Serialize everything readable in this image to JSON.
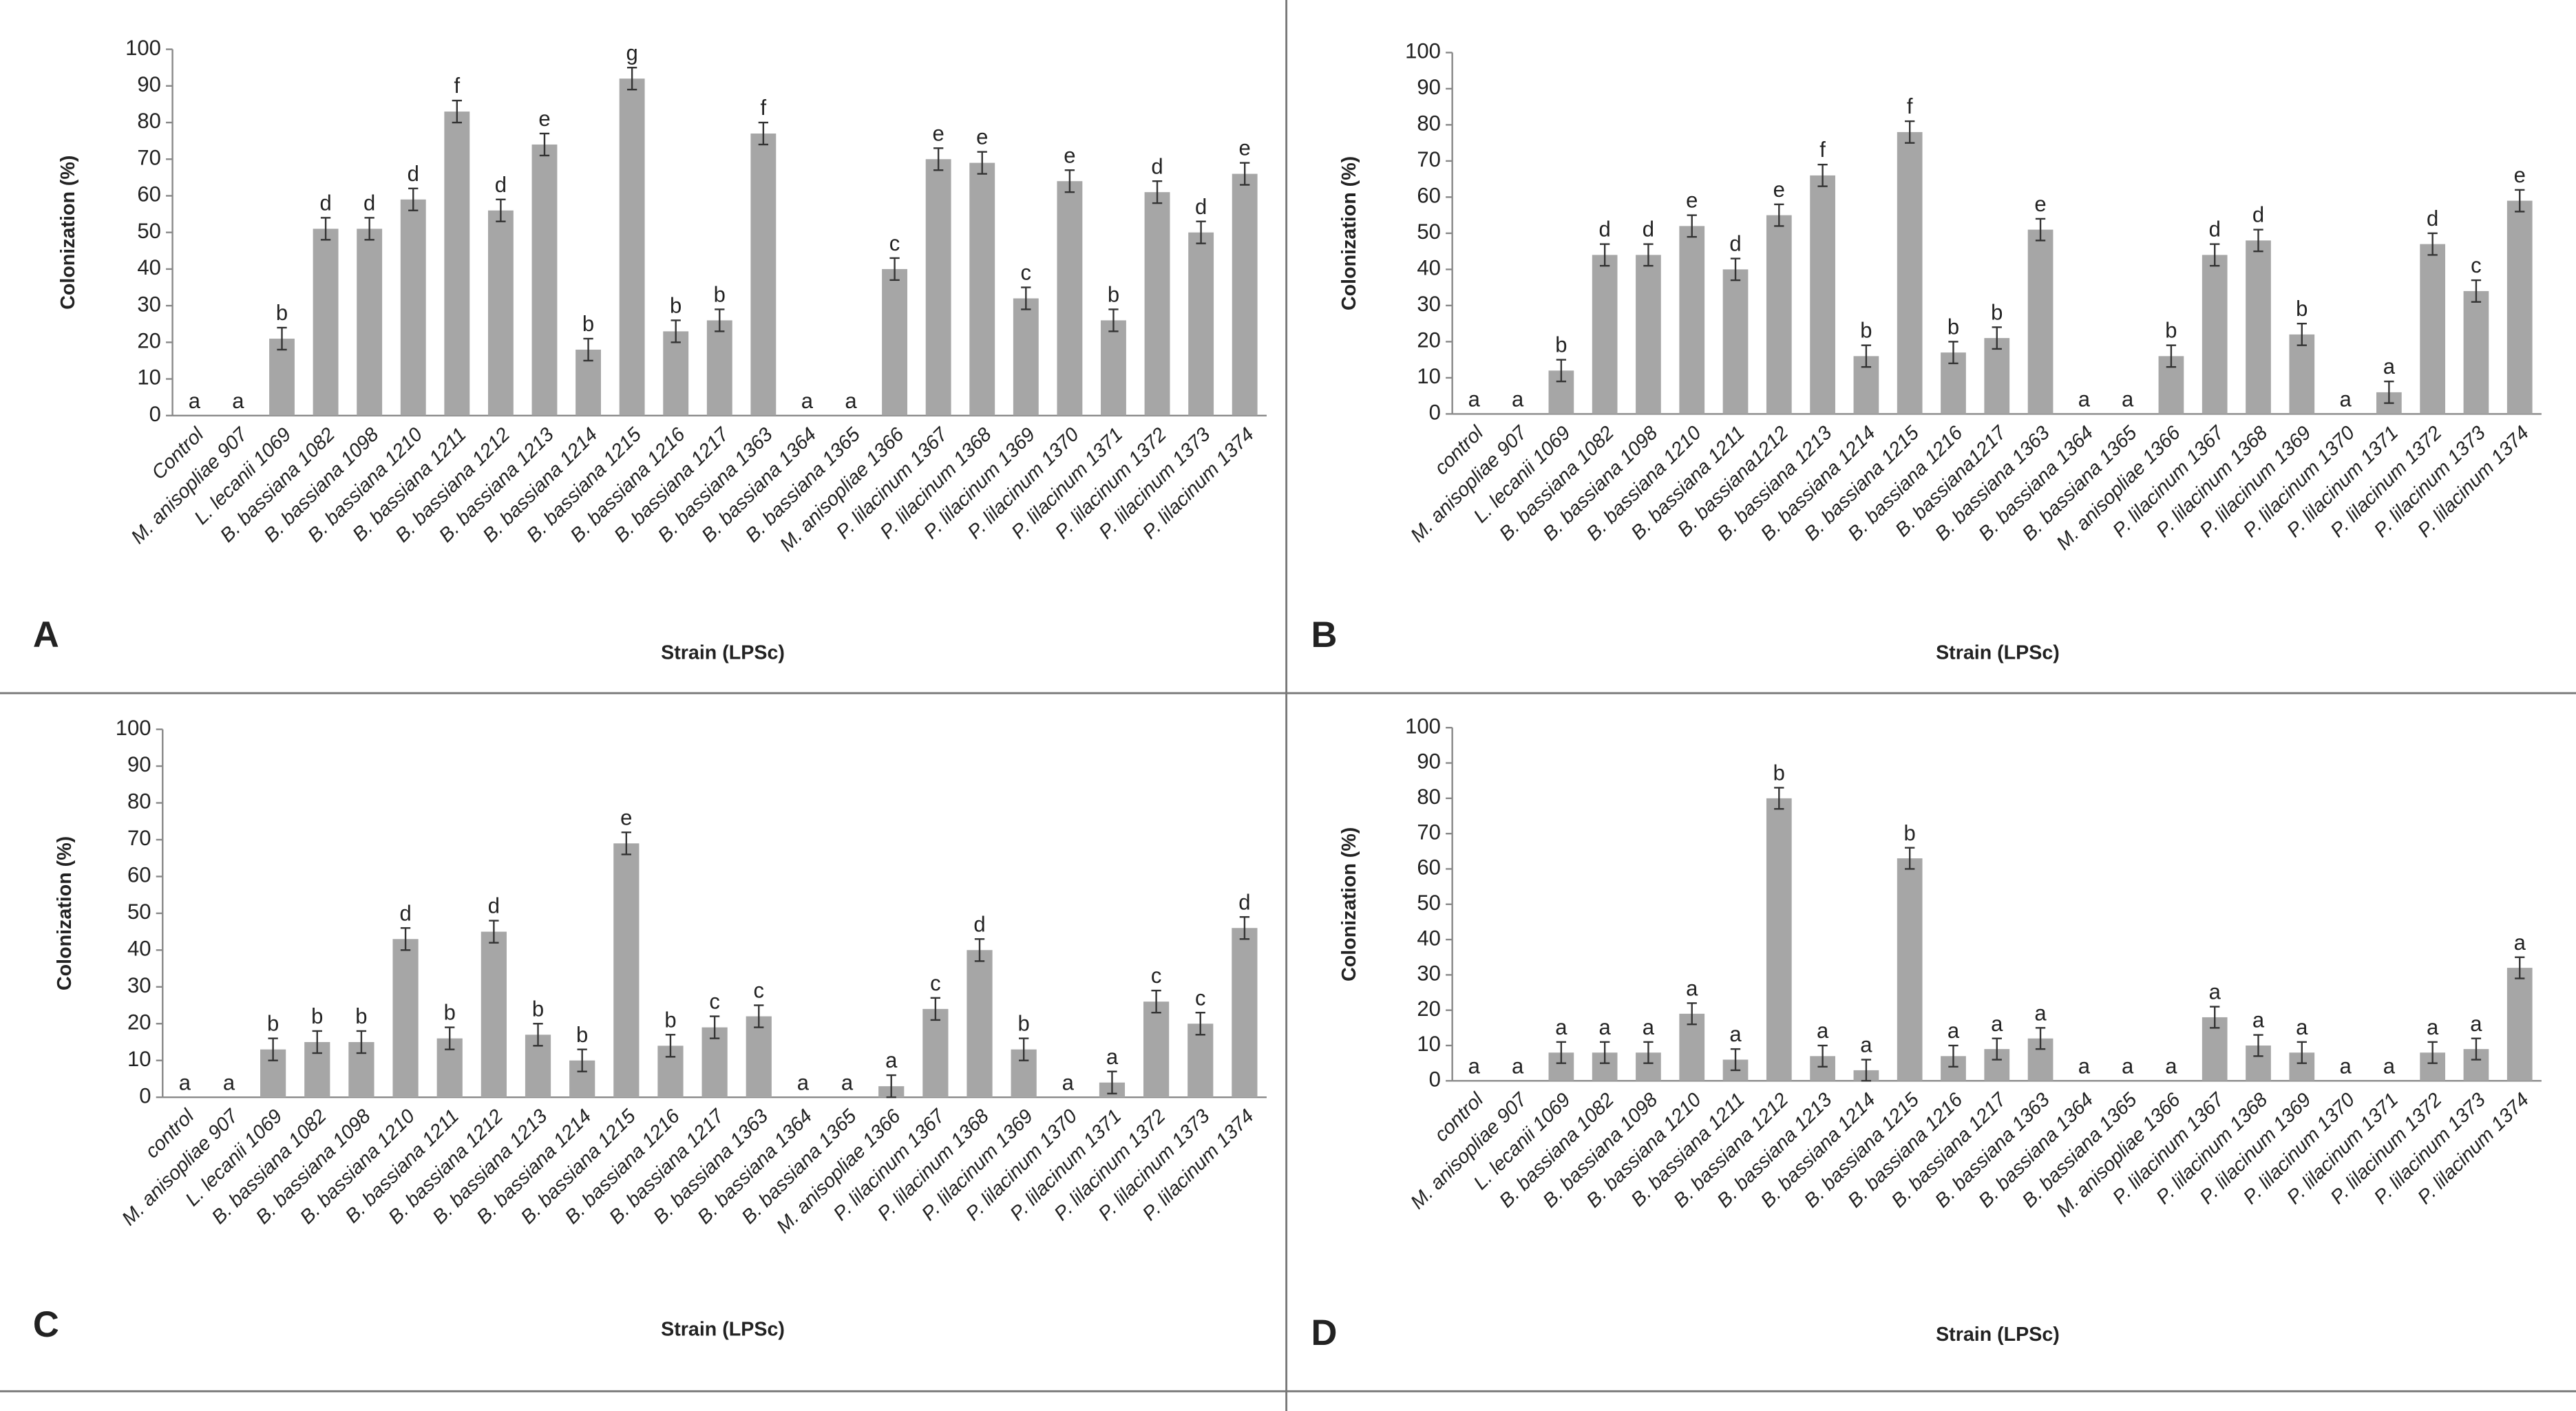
{
  "chart_data": [
    {
      "type": "bar",
      "panel_label": "A",
      "ylabel": "Colonization (%)",
      "xlabel": "Strain (LPSc)",
      "color": "#a6a6a6",
      "ylim": [
        0,
        100
      ],
      "yticks": [
        0,
        10,
        20,
        30,
        40,
        50,
        60,
        70,
        80,
        90,
        100
      ],
      "categories": [
        "Control",
        "M. anisopliae 907",
        "L. lecanii 1069",
        "B. bassiana 1082",
        "B. bassiana 1098",
        "B. bassiana 1210",
        "B. bassiana 1211",
        "B. bassiana 1212",
        "B. bassiana 1213",
        "B. bassiana 1214",
        "B. bassiana 1215",
        "B. bassiana 1216",
        "B. bassiana 1217",
        "B. bassiana 1363",
        "B. bassiana 1364",
        "B. bassiana 1365",
        "M. anisopliae 1366",
        "P. lilacinum 1367",
        "P. lilacinum 1368",
        "P. lilacinum 1369",
        "P. lilacinum 1370",
        "P. lilacinum 1371",
        "P. lilacinum 1372",
        "P. lilacinum 1373",
        "P. lilacinum 1374"
      ],
      "values": [
        0,
        0,
        21,
        51,
        51,
        59,
        83,
        56,
        74,
        18,
        92,
        23,
        26,
        77,
        0,
        0,
        40,
        70,
        69,
        32,
        64,
        26,
        61,
        50,
        66
      ],
      "errors": [
        0,
        0,
        3,
        3,
        3,
        3,
        3,
        3,
        3,
        3,
        3,
        3,
        3,
        3,
        0,
        0,
        3,
        3,
        3,
        3,
        3,
        3,
        3,
        3,
        3
      ],
      "letters": [
        "a",
        "a",
        "b",
        "d",
        "d",
        "d",
        "f",
        "d",
        "e",
        "b",
        "g",
        "b",
        "b",
        "f",
        "a",
        "a",
        "c",
        "e",
        "e",
        "c",
        "e",
        "b",
        "d",
        "d",
        "e"
      ]
    },
    {
      "type": "bar",
      "panel_label": "B",
      "ylabel": "Colonization (%)",
      "xlabel": "Strain (LPSc)",
      "color": "#a6a6a6",
      "ylim": [
        0,
        100
      ],
      "yticks": [
        0,
        10,
        20,
        30,
        40,
        50,
        60,
        70,
        80,
        90,
        100
      ],
      "categories": [
        "control",
        "M. anisopliae 907",
        "L. lecanii 1069",
        "B. bassiana 1082",
        "B. bassiana 1098",
        "B. bassiana 1210",
        "B. bassiana 1211",
        "B. bassiana1212",
        "B. bassiana 1213",
        "B. bassiana 1214",
        "B. bassiana 1215",
        "B. bassiana 1216",
        "B. bassiana1217",
        "B. bassiana 1363",
        "B. bassiana 1364",
        "B. bassiana 1365",
        "M. anisopliae 1366",
        "P. lilacinum 1367",
        "P. lilacinum 1368",
        "P. lilacinum 1369",
        "P. lilacinum 1370",
        "P. lilacinum 1371",
        "P. lilacinum 1372",
        "P. lilacinum 1373",
        "P. lilacinum 1374"
      ],
      "values": [
        0,
        0,
        12,
        44,
        44,
        52,
        40,
        55,
        66,
        16,
        78,
        17,
        21,
        51,
        0,
        0,
        16,
        44,
        48,
        22,
        0,
        6,
        47,
        34,
        59
      ],
      "errors": [
        0,
        0,
        3,
        3,
        3,
        3,
        3,
        3,
        3,
        3,
        3,
        3,
        3,
        3,
        0,
        0,
        3,
        3,
        3,
        3,
        0,
        3,
        3,
        3,
        3
      ],
      "letters": [
        "a",
        "a",
        "b",
        "d",
        "d",
        "e",
        "d",
        "e",
        "f",
        "b",
        "f",
        "b",
        "b",
        "e",
        "a",
        "a",
        "b",
        "d",
        "d",
        "b",
        "a",
        "a",
        "d",
        "c",
        "e"
      ]
    },
    {
      "type": "bar",
      "panel_label": "C",
      "ylabel": "Colonization (%)",
      "xlabel": "Strain (LPSc)",
      "color": "#a6a6a6",
      "ylim": [
        0,
        100
      ],
      "yticks": [
        0,
        10,
        20,
        30,
        40,
        50,
        60,
        70,
        80,
        90,
        100
      ],
      "categories": [
        "control",
        "M. anisopliae 907",
        "L. lecanii 1069",
        "B. bassiana 1082",
        "B. bassiana 1098",
        "B. bassiana 1210",
        "B. bassiana 1211",
        "B. bassiana 1212",
        "B. bassiana 1213",
        "B. bassiana 1214",
        "B. bassiana 1215",
        "B. bassiana 1216",
        "B. bassiana 1217",
        "B. bassiana 1363",
        "B. bassiana 1364",
        "B. bassiana 1365",
        "M. anisopliae 1366",
        "P. lilacinum 1367",
        "P. lilacinum 1368",
        "P. lilacinum 1369",
        "P. lilacinum 1370",
        "P. lilacinum 1371",
        "P. lilacinum 1372",
        "P. lilacinum 1373",
        "P. lilacinum 1374"
      ],
      "values": [
        0,
        0,
        13,
        15,
        15,
        43,
        16,
        45,
        17,
        10,
        69,
        14,
        19,
        22,
        0,
        0,
        3,
        24,
        40,
        13,
        0,
        4,
        26,
        20,
        46
      ],
      "errors": [
        0,
        0,
        3,
        3,
        3,
        3,
        3,
        3,
        3,
        3,
        3,
        3,
        3,
        3,
        0,
        0,
        3,
        3,
        3,
        3,
        0,
        3,
        3,
        3,
        3
      ],
      "letters": [
        "a",
        "a",
        "b",
        "b",
        "b",
        "d",
        "b",
        "d",
        "b",
        "b",
        "e",
        "b",
        "c",
        "c",
        "a",
        "a",
        "a",
        "c",
        "d",
        "b",
        "a",
        "a",
        "c",
        "c",
        "d"
      ]
    },
    {
      "type": "bar",
      "panel_label": "D",
      "ylabel": "Colonization (%)",
      "xlabel": "Strain (LPSc)",
      "color": "#a6a6a6",
      "ylim": [
        0,
        100
      ],
      "yticks": [
        0,
        10,
        20,
        30,
        40,
        50,
        60,
        70,
        80,
        90,
        100
      ],
      "categories": [
        "control",
        "M. anisopliae 907",
        "L. lecanii 1069",
        "B. bassiana 1082",
        "B. bassiana 1098",
        "B. bassiana 1210",
        "B. bassiana 1211",
        "B. bassiana 1212",
        "B. bassiana 1213",
        "B. bassiana 1214",
        "B. bassiana 1215",
        "B. bassiana 1216",
        "B. bassiana 1217",
        "B. bassiana 1363",
        "B. bassiana 1364",
        "B. bassiana 1365",
        "M. anisopliae 1366",
        "P. lilacinum 1367",
        "P. lilacinum 1368",
        "P. lilacinum 1369",
        "P. lilacinum 1370",
        "P. lilacinum 1371",
        "P. lilacinum 1372",
        "P. lilacinum 1373",
        "P. lilacinum 1374"
      ],
      "values": [
        0,
        0,
        8,
        8,
        8,
        19,
        6,
        80,
        7,
        3,
        63,
        7,
        9,
        12,
        0,
        0,
        0,
        18,
        10,
        8,
        0,
        0,
        8,
        9,
        32
      ],
      "errors": [
        0,
        0,
        3,
        3,
        3,
        3,
        3,
        3,
        3,
        3,
        3,
        3,
        3,
        3,
        0,
        0,
        0,
        3,
        3,
        3,
        0,
        0,
        3,
        3,
        3
      ],
      "letters": [
        "a",
        "a",
        "a",
        "a",
        "a",
        "a",
        "a",
        "b",
        "a",
        "a",
        "b",
        "a",
        "a",
        "a",
        "a",
        "a",
        "a",
        "a",
        "a",
        "a",
        "a",
        "a",
        "a",
        "a",
        "a"
      ]
    }
  ]
}
